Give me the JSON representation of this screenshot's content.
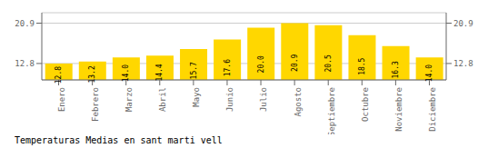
{
  "chart_data": {
    "type": "bar",
    "title": "Temperaturas Medias en sant marti vell",
    "categories": [
      "Enero",
      "Febrero",
      "Marzo",
      "Abril",
      "Mayo",
      "Junio",
      "Julio",
      "Agosto",
      "Septiembre",
      "Octubre",
      "Noviembre",
      "Diciembre"
    ],
    "values": [
      12.8,
      13.2,
      14.0,
      14.4,
      15.7,
      17.6,
      20.0,
      20.9,
      20.5,
      18.5,
      16.3,
      14.0
    ],
    "value_labels": [
      "12.8",
      "13.2",
      "14.0",
      "14.4",
      "15.7",
      "17.6",
      "20.0",
      "20.9",
      "20.5",
      "18.5",
      "16.3",
      "14.0"
    ],
    "color": "#FFD700",
    "ylim": [
      9.5,
      23.0
    ],
    "yticks": [
      20.9,
      12.8
    ],
    "y2lim": [
      9.5,
      23.0
    ],
    "y2ticks": [
      20.9,
      12.8
    ],
    "grid": true,
    "data_labels": true
  }
}
